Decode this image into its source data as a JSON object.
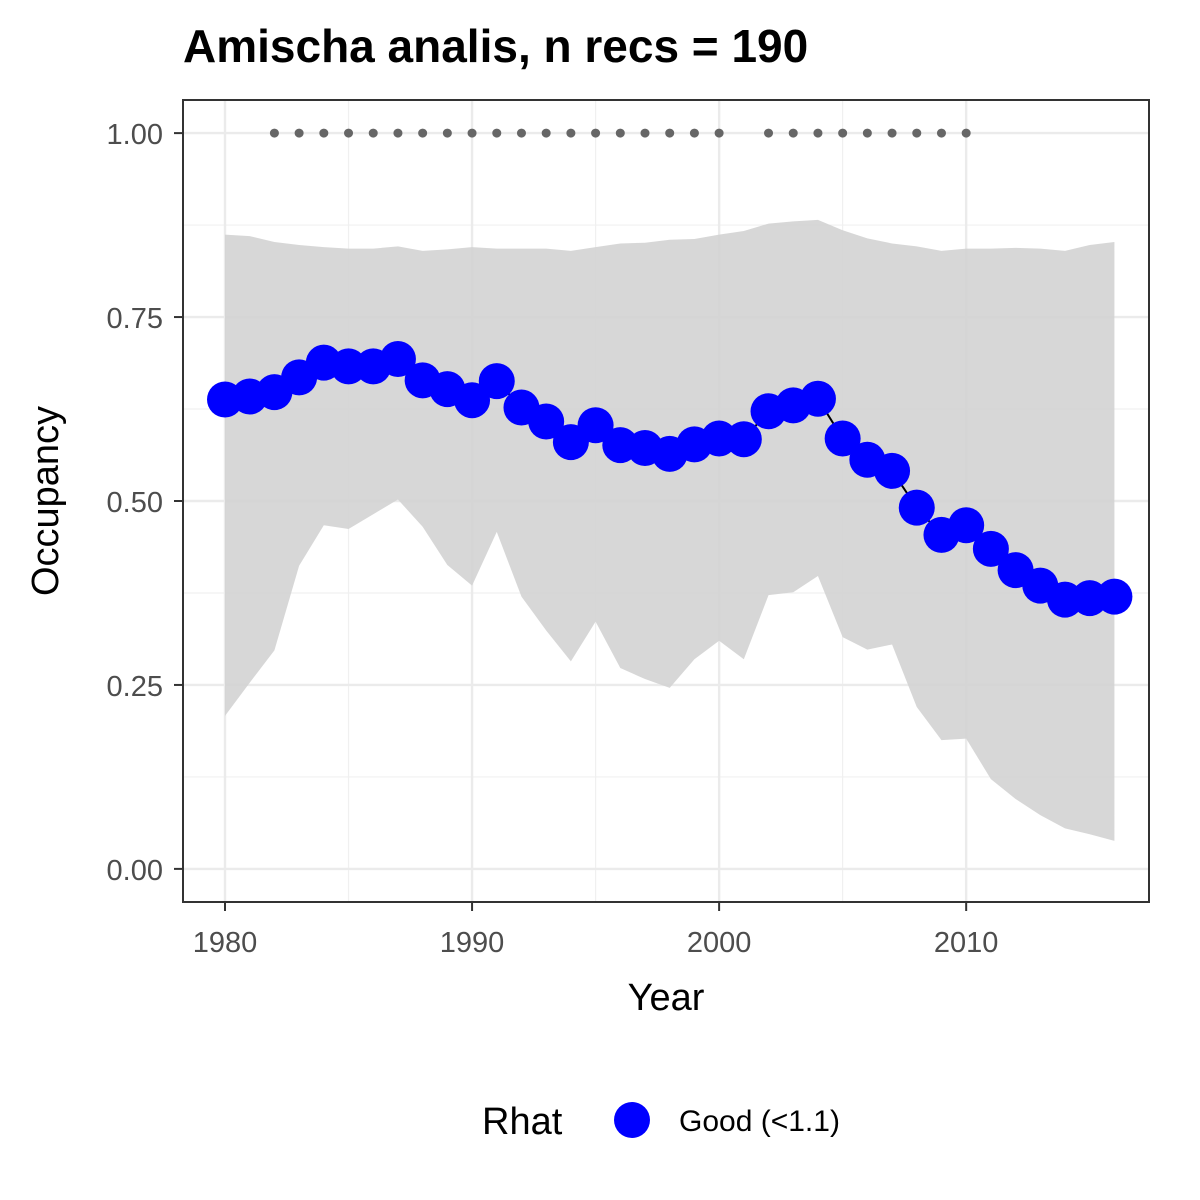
{
  "chart_data": {
    "type": "line",
    "title": "Amischa analis, n recs = 190",
    "xlabel": "Year",
    "ylabel": "Occupancy",
    "xlim": [
      1978.3,
      2017.4
    ],
    "ylim": [
      -0.045,
      1.045
    ],
    "x_ticks": [
      1980,
      1990,
      2000,
      2010
    ],
    "y_ticks": [
      0,
      0.25,
      0.5,
      0.75,
      1
    ],
    "x_tick_labels": [
      "1980",
      "1990",
      "2000",
      "2010"
    ],
    "y_tick_labels": [
      "0.00",
      "0.25",
      "0.50",
      "0.75",
      "1.00"
    ],
    "grid": true,
    "legend_position": "bottom",
    "legend": {
      "title": "Rhat",
      "entries": [
        {
          "label": "Good (<1.1)",
          "color": "#0000ff"
        }
      ]
    },
    "colors": {
      "point": "#0000ff",
      "ribbon": "#d3d3d3",
      "record_dots": "#666666"
    },
    "series": [
      {
        "name": "Good (<1.1)",
        "x": [
          1980,
          1981,
          1982,
          1983,
          1984,
          1985,
          1986,
          1987,
          1988,
          1989,
          1990,
          1991,
          1992,
          1993,
          1994,
          1995,
          1996,
          1997,
          1998,
          1999,
          2000,
          2001,
          2002,
          2003,
          2004,
          2005,
          2006,
          2007,
          2008,
          2009,
          2010,
          2011,
          2012,
          2013,
          2014,
          2015,
          2016
        ],
        "y": [
          0.638,
          0.642,
          0.648,
          0.668,
          0.688,
          0.683,
          0.683,
          0.693,
          0.664,
          0.652,
          0.637,
          0.663,
          0.627,
          0.608,
          0.58,
          0.603,
          0.576,
          0.572,
          0.564,
          0.577,
          0.585,
          0.584,
          0.622,
          0.63,
          0.639,
          0.585,
          0.556,
          0.541,
          0.491,
          0.454,
          0.467,
          0.435,
          0.406,
          0.385,
          0.366,
          0.368,
          0.37
        ]
      }
    ],
    "ribbon": {
      "x": [
        1980,
        1981,
        1982,
        1983,
        1984,
        1985,
        1986,
        1987,
        1988,
        1989,
        1990,
        1991,
        1992,
        1993,
        1994,
        1995,
        1996,
        1997,
        1998,
        1999,
        2000,
        2001,
        2002,
        2003,
        2004,
        2005,
        2006,
        2007,
        2008,
        2009,
        2010,
        2011,
        2012,
        2013,
        2014,
        2015,
        2016
      ],
      "lower": [
        0.208,
        0.253,
        0.297,
        0.412,
        0.467,
        0.462,
        0.482,
        0.502,
        0.465,
        0.413,
        0.385,
        0.458,
        0.37,
        0.324,
        0.282,
        0.336,
        0.273,
        0.258,
        0.246,
        0.285,
        0.31,
        0.285,
        0.372,
        0.376,
        0.398,
        0.315,
        0.298,
        0.305,
        0.22,
        0.175,
        0.177,
        0.122,
        0.095,
        0.073,
        0.055,
        0.047,
        0.038
      ],
      "upper": [
        0.862,
        0.86,
        0.852,
        0.848,
        0.845,
        0.843,
        0.843,
        0.846,
        0.84,
        0.842,
        0.845,
        0.843,
        0.843,
        0.843,
        0.84,
        0.845,
        0.85,
        0.851,
        0.855,
        0.856,
        0.862,
        0.867,
        0.877,
        0.88,
        0.882,
        0.868,
        0.857,
        0.85,
        0.846,
        0.84,
        0.843,
        0.843,
        0.844,
        0.843,
        0.84,
        0.848,
        0.852
      ]
    },
    "record_years": [
      1982,
      1983,
      1984,
      1985,
      1986,
      1987,
      1988,
      1989,
      1990,
      1991,
      1992,
      1993,
      1994,
      1995,
      1996,
      1997,
      1998,
      1999,
      2000,
      2002,
      2003,
      2004,
      2005,
      2006,
      2007,
      2008,
      2009,
      2010
    ],
    "record_y": 1.0
  }
}
